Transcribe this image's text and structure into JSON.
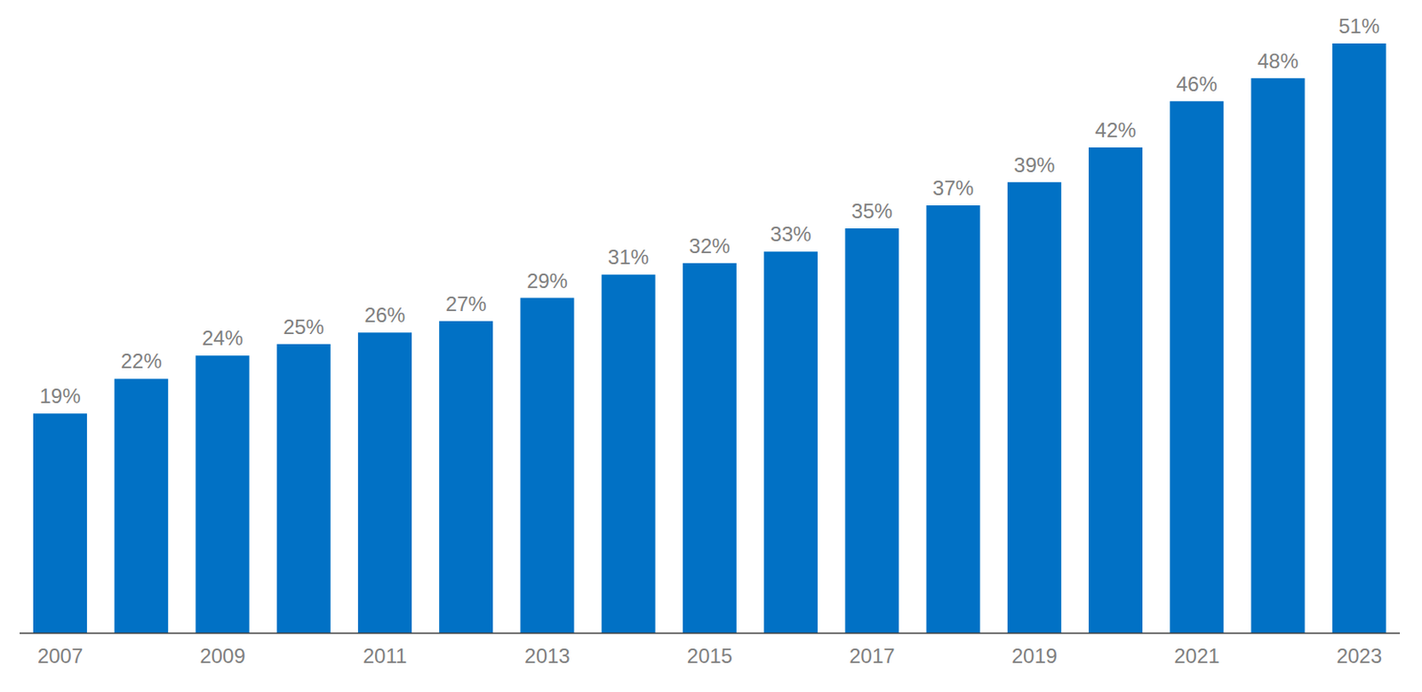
{
  "chart_data": {
    "type": "bar",
    "categories": [
      "2007",
      null,
      "2009",
      null,
      "2011",
      null,
      "2013",
      null,
      "2015",
      null,
      "2017",
      null,
      "2019",
      null,
      "2021",
      null,
      "2023"
    ],
    "values": [
      19,
      22,
      24,
      25,
      26,
      27,
      29,
      31,
      32,
      33,
      35,
      37,
      39,
      42,
      46,
      48,
      51
    ],
    "value_labels": [
      "19%",
      "22%",
      "24%",
      "25%",
      "26%",
      "27%",
      "29%",
      "31%",
      "32%",
      "33%",
      "35%",
      "37%",
      "39%",
      "42%",
      "46%",
      "48%",
      "51%"
    ],
    "color": "#0171c5",
    "data_labels": true,
    "tick_labels": "x",
    "grid": false
  }
}
